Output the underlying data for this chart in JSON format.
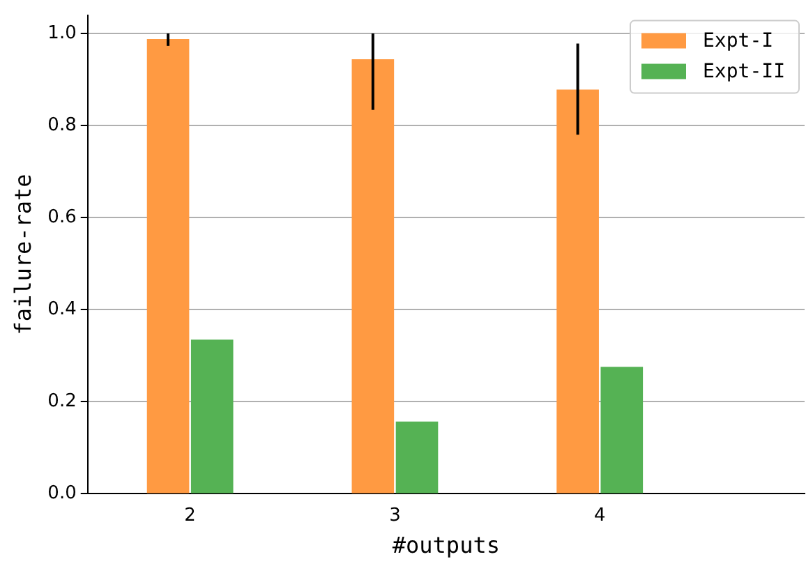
{
  "chart_data": {
    "type": "bar",
    "x": [
      2,
      3,
      4
    ],
    "xlabel": "#outputs",
    "ylabel": "failure-rate",
    "series": [
      {
        "name": "Expt-I",
        "color": "#ff9a42",
        "values": [
          0.988,
          0.944,
          0.878
        ],
        "errors": [
          [
            0.973,
            1.0
          ],
          [
            0.834,
            1.0
          ],
          [
            0.78,
            0.978
          ]
        ]
      },
      {
        "name": "Expt-II",
        "color": "#55b254",
        "values": [
          0.335,
          0.157,
          0.276
        ]
      }
    ],
    "xlim": [
      1.5,
      5
    ],
    "xticks": [
      2,
      3,
      4
    ],
    "ylim": [
      0,
      1.04
    ],
    "yticks": [
      {
        "value": 0,
        "label": "0.0"
      },
      {
        "value": 0.2,
        "label": "0.2"
      },
      {
        "value": 0.4,
        "label": "0.4"
      },
      {
        "value": 0.6,
        "label": "0.6"
      },
      {
        "value": 0.8,
        "label": "0.8"
      },
      {
        "value": 1,
        "label": "1.0"
      }
    ],
    "grid": "y",
    "legend": "top right"
  }
}
